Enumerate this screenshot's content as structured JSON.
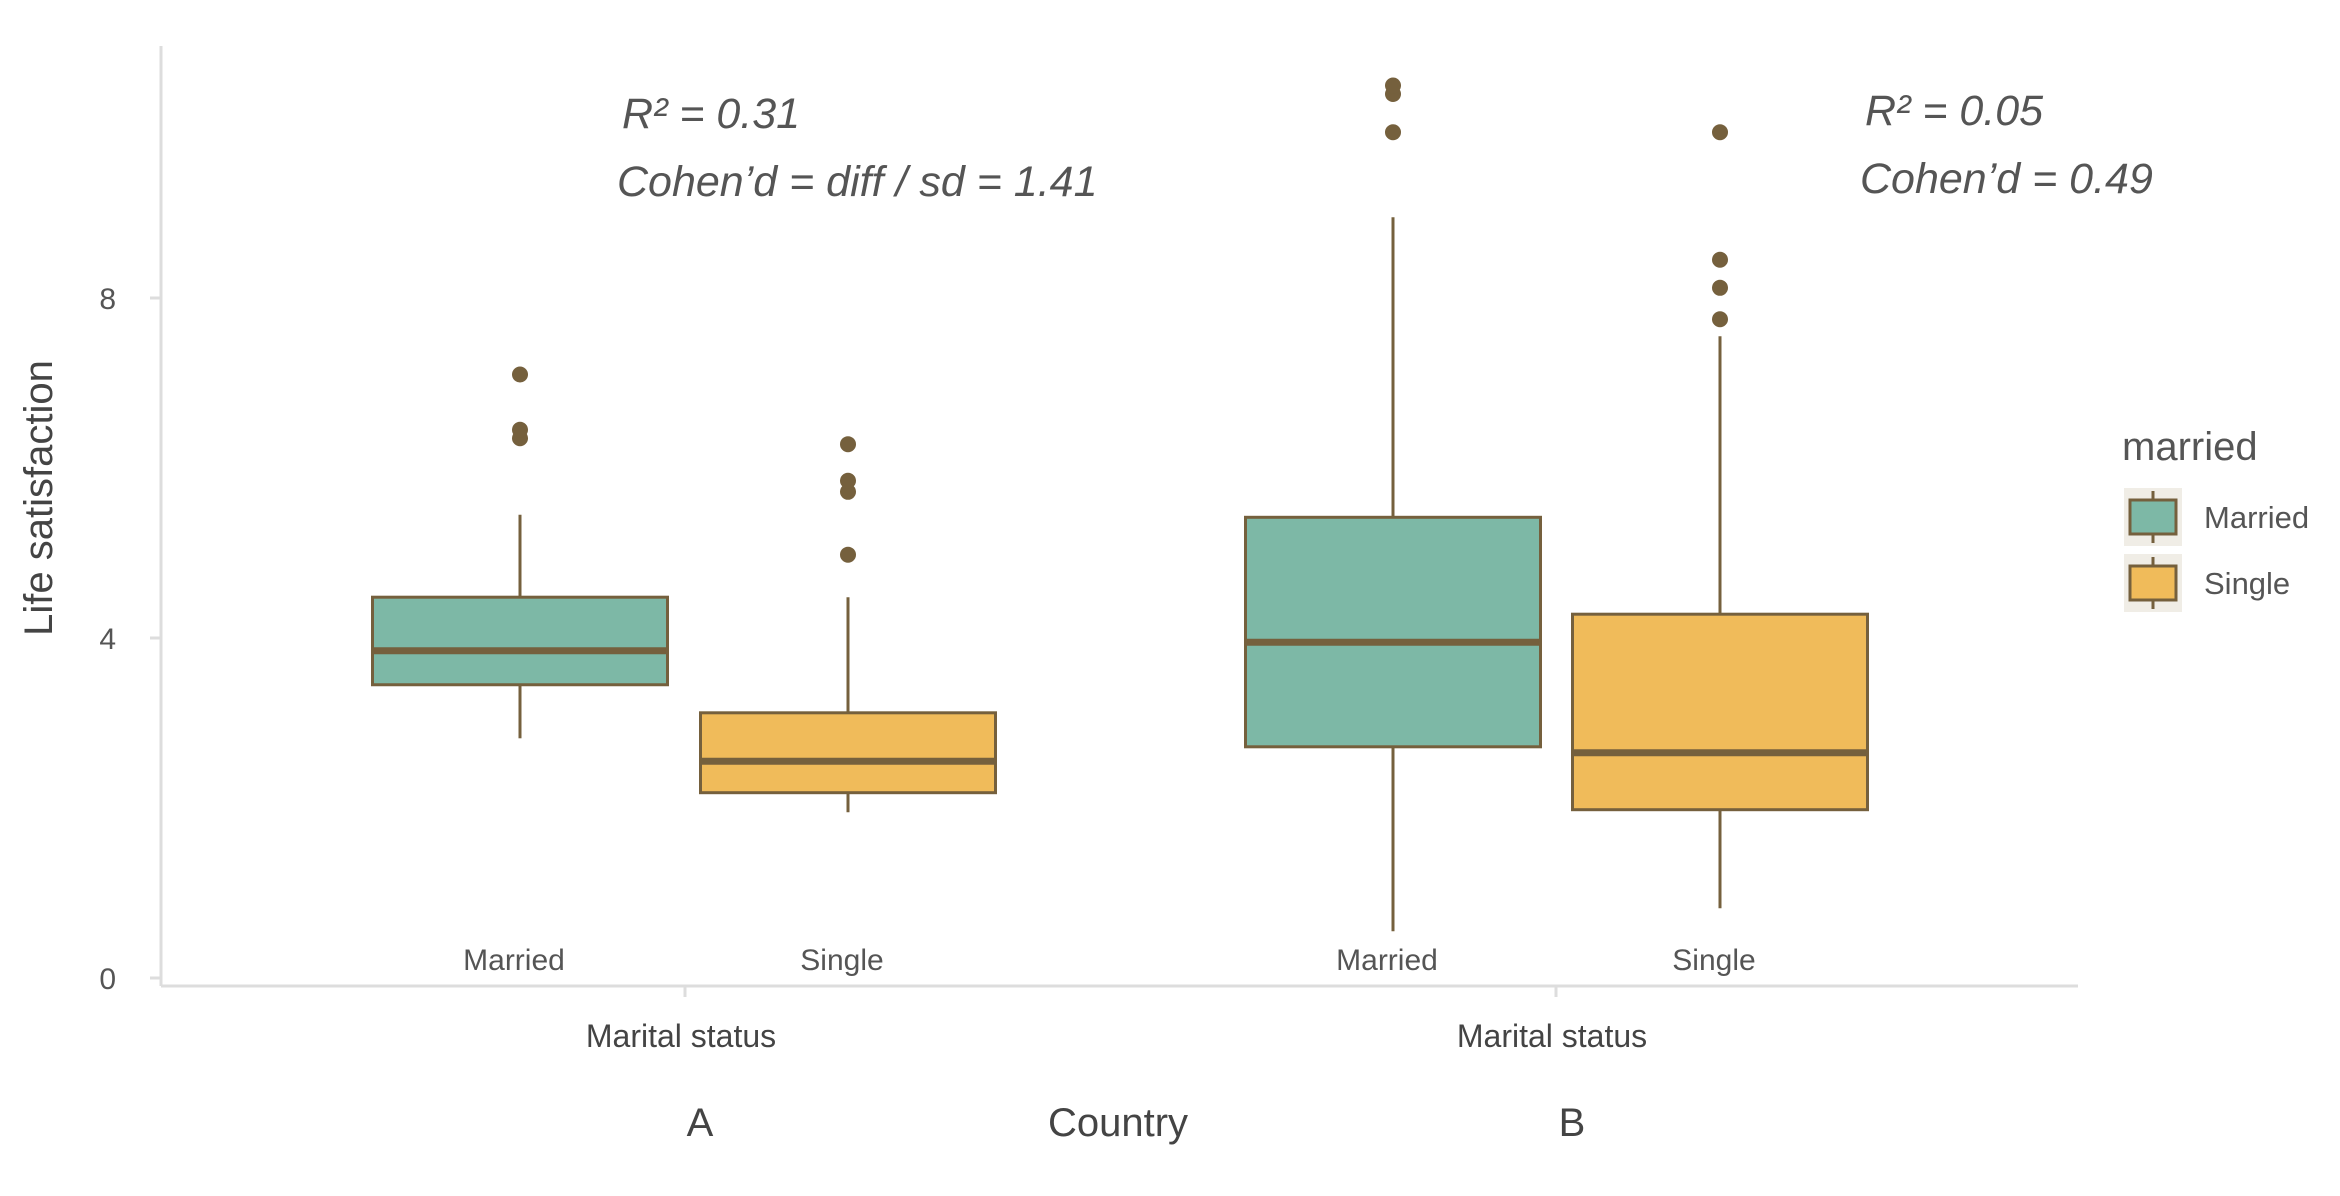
{
  "chart_data": {
    "type": "box",
    "ylabel": "Life satisfaction",
    "yticks": [
      0,
      4,
      8
    ],
    "ylim": [
      0,
      10.9
    ],
    "facet_axis_title": "Country",
    "grid": false,
    "legend_position": "right",
    "legend": {
      "title": "married",
      "items": [
        {
          "label": "Married",
          "color": "#7db8a6"
        },
        {
          "label": "Single",
          "color": "#f0bb5a"
        }
      ]
    },
    "stroke_color": "#75603d",
    "facets": [
      {
        "name": "A",
        "x_title": "Marital status",
        "annotations": [
          "R² = 0.31",
          "Cohen’d = diff / sd  = 1.41"
        ],
        "boxes": [
          {
            "category": "Married",
            "whisker_low": 2.82,
            "q1": 3.45,
            "median": 3.85,
            "q3": 4.48,
            "whisker_high": 5.45,
            "outliers": [
              6.35,
              6.45,
              7.1
            ]
          },
          {
            "category": "Single",
            "whisker_low": 1.95,
            "q1": 2.18,
            "median": 2.55,
            "q3": 3.12,
            "whisker_high": 4.48,
            "outliers": [
              4.98,
              5.72,
              5.85,
              6.28
            ]
          }
        ]
      },
      {
        "name": "B",
        "x_title": "Marital status",
        "annotations": [
          "R² = 0.05",
          "Cohen’d = 0.49"
        ],
        "boxes": [
          {
            "category": "Married",
            "whisker_low": 0.55,
            "q1": 2.72,
            "median": 3.95,
            "q3": 5.42,
            "whisker_high": 8.95,
            "outliers": [
              9.95,
              10.4,
              10.5
            ]
          },
          {
            "category": "Single",
            "whisker_low": 0.82,
            "q1": 1.98,
            "median": 2.65,
            "q3": 4.28,
            "whisker_high": 7.55,
            "outliers": [
              7.75,
              8.12,
              8.45,
              9.95
            ]
          }
        ]
      }
    ]
  }
}
